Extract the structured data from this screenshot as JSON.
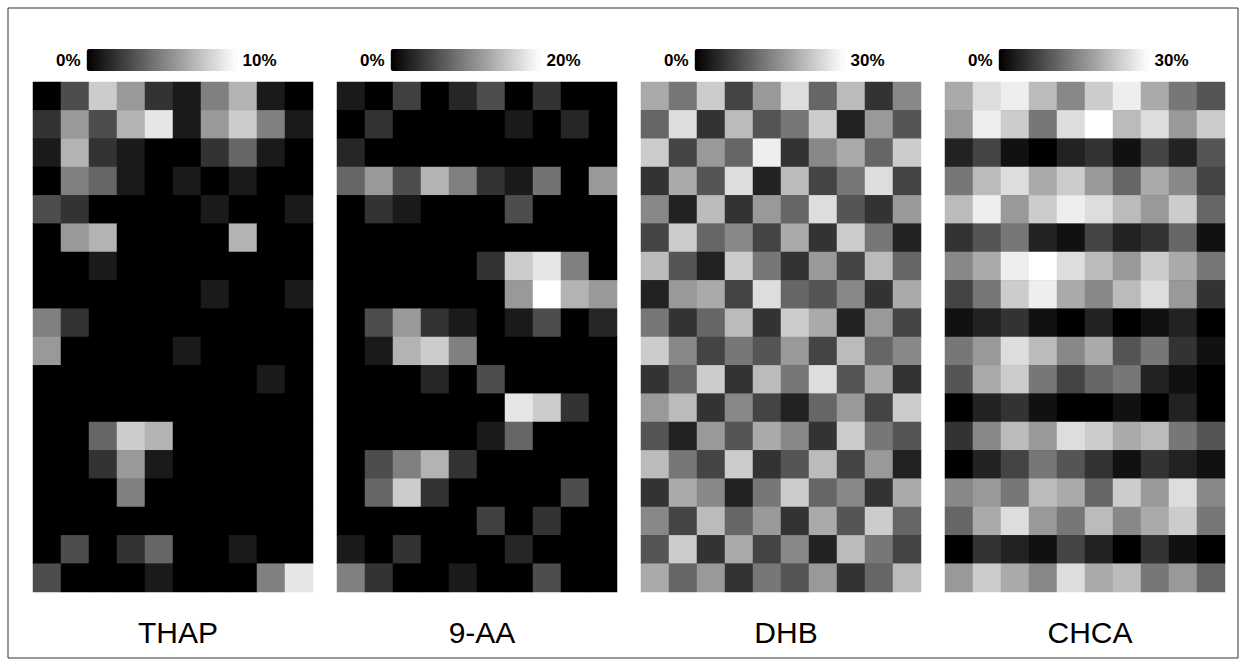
{
  "chart_data": [
    {
      "type": "heatmap",
      "title": "THAP",
      "tick_labels": false,
      "colorbar_range": [
        0,
        10
      ],
      "colorbar_ticks": [
        {
          "value": 0,
          "label": "0%"
        },
        {
          "value": 10,
          "label": "10%"
        }
      ],
      "cells": [
        [
          0,
          3,
          8,
          6,
          2,
          1,
          5,
          7,
          1,
          0
        ],
        [
          2,
          6,
          3,
          7,
          9,
          1,
          6,
          8,
          5,
          1
        ],
        [
          1,
          7,
          2,
          1,
          0,
          0,
          2,
          4,
          1,
          0
        ],
        [
          0,
          5,
          4,
          1,
          0,
          1,
          0,
          1,
          0,
          0
        ],
        [
          3,
          2,
          0,
          0,
          0,
          0,
          1,
          0,
          0,
          1
        ],
        [
          0,
          6,
          7,
          0,
          0,
          0,
          0,
          7,
          0,
          0
        ],
        [
          0,
          0,
          1,
          0,
          0,
          0,
          0,
          0,
          0,
          0
        ],
        [
          0,
          0,
          0,
          0,
          0,
          0,
          1,
          0,
          0,
          1
        ],
        [
          5,
          2,
          0,
          0,
          0,
          0,
          0,
          0,
          0,
          0
        ],
        [
          6,
          0,
          0,
          0,
          0,
          1,
          0,
          0,
          0,
          0
        ],
        [
          0,
          0,
          0,
          0,
          0,
          0,
          0,
          0,
          1,
          0
        ],
        [
          0,
          0,
          0,
          0,
          0,
          0,
          0,
          0,
          0,
          0
        ],
        [
          0,
          0,
          4,
          8,
          7,
          0,
          0,
          0,
          0,
          0
        ],
        [
          0,
          0,
          2,
          6,
          1,
          0,
          0,
          0,
          0,
          0
        ],
        [
          0,
          0,
          0,
          5,
          0,
          0,
          0,
          0,
          0,
          0
        ],
        [
          0,
          0,
          0,
          0,
          0,
          0,
          0,
          0,
          0,
          0
        ],
        [
          0,
          3,
          0,
          2,
          4,
          0,
          0,
          1,
          0,
          0
        ],
        [
          3,
          0,
          0,
          0,
          1,
          0,
          0,
          0,
          5,
          9
        ]
      ]
    },
    {
      "type": "heatmap",
      "title": "9-AA",
      "tick_labels": false,
      "colorbar_range": [
        0,
        20
      ],
      "colorbar_ticks": [
        {
          "value": 0,
          "label": "0%"
        },
        {
          "value": 20,
          "label": "20%"
        }
      ],
      "cells": [
        [
          2,
          0,
          5,
          0,
          3,
          6,
          0,
          4,
          0,
          0
        ],
        [
          0,
          4,
          0,
          0,
          0,
          0,
          2,
          0,
          3,
          0
        ],
        [
          3,
          0,
          0,
          0,
          0,
          0,
          0,
          0,
          0,
          0
        ],
        [
          8,
          12,
          6,
          14,
          10,
          4,
          2,
          9,
          0,
          12
        ],
        [
          0,
          4,
          2,
          0,
          0,
          0,
          6,
          0,
          0,
          0
        ],
        [
          0,
          0,
          0,
          0,
          0,
          0,
          0,
          0,
          0,
          0
        ],
        [
          0,
          0,
          0,
          0,
          0,
          4,
          16,
          18,
          10,
          0
        ],
        [
          0,
          0,
          0,
          0,
          0,
          0,
          12,
          20,
          14,
          12
        ],
        [
          0,
          6,
          12,
          4,
          2,
          0,
          2,
          6,
          0,
          3
        ],
        [
          0,
          2,
          14,
          16,
          10,
          0,
          0,
          0,
          0,
          0
        ],
        [
          0,
          0,
          0,
          3,
          0,
          6,
          0,
          0,
          0,
          0
        ],
        [
          0,
          0,
          0,
          0,
          0,
          0,
          18,
          16,
          4,
          0
        ],
        [
          0,
          0,
          0,
          0,
          0,
          2,
          8,
          0,
          0,
          0
        ],
        [
          0,
          6,
          10,
          14,
          4,
          0,
          0,
          0,
          0,
          0
        ],
        [
          0,
          8,
          16,
          4,
          0,
          0,
          0,
          0,
          6,
          0
        ],
        [
          0,
          0,
          0,
          0,
          0,
          5,
          0,
          4,
          0,
          0
        ],
        [
          2,
          0,
          4,
          0,
          0,
          0,
          3,
          0,
          0,
          0
        ],
        [
          10,
          4,
          0,
          0,
          2,
          0,
          0,
          6,
          0,
          0
        ]
      ]
    },
    {
      "type": "heatmap",
      "title": "DHB",
      "tick_labels": false,
      "colorbar_range": [
        0,
        30
      ],
      "colorbar_ticks": [
        {
          "value": 0,
          "label": "0%"
        },
        {
          "value": 30,
          "label": "30%"
        }
      ],
      "cells": [
        [
          20,
          14,
          24,
          8,
          18,
          26,
          12,
          22,
          6,
          16
        ],
        [
          12,
          26,
          6,
          22,
          10,
          14,
          24,
          4,
          18,
          10
        ],
        [
          24,
          8,
          18,
          12,
          28,
          6,
          16,
          20,
          12,
          24
        ],
        [
          6,
          20,
          10,
          26,
          4,
          22,
          8,
          14,
          26,
          8
        ],
        [
          16,
          4,
          22,
          6,
          18,
          12,
          26,
          10,
          6,
          18
        ],
        [
          8,
          24,
          12,
          16,
          8,
          20,
          6,
          24,
          14,
          4
        ],
        [
          22,
          10,
          4,
          24,
          14,
          6,
          18,
          8,
          22,
          12
        ],
        [
          4,
          18,
          20,
          8,
          26,
          12,
          10,
          16,
          6,
          20
        ],
        [
          14,
          6,
          12,
          22,
          6,
          24,
          20,
          4,
          18,
          8
        ],
        [
          24,
          16,
          8,
          14,
          10,
          18,
          8,
          22,
          12,
          16
        ],
        [
          6,
          12,
          24,
          6,
          22,
          14,
          26,
          10,
          20,
          6
        ],
        [
          18,
          22,
          6,
          16,
          8,
          4,
          12,
          18,
          8,
          24
        ],
        [
          10,
          4,
          18,
          10,
          20,
          16,
          6,
          24,
          14,
          10
        ],
        [
          22,
          14,
          8,
          24,
          6,
          10,
          22,
          8,
          18,
          4
        ],
        [
          6,
          20,
          16,
          4,
          14,
          24,
          12,
          16,
          6,
          20
        ],
        [
          16,
          8,
          22,
          12,
          18,
          6,
          20,
          10,
          24,
          12
        ],
        [
          10,
          24,
          6,
          20,
          8,
          16,
          4,
          22,
          14,
          8
        ],
        [
          20,
          12,
          18,
          6,
          14,
          10,
          18,
          6,
          12,
          22
        ]
      ]
    },
    {
      "type": "heatmap",
      "title": "CHCA",
      "tick_labels": false,
      "colorbar_range": [
        0,
        30
      ],
      "colorbar_ticks": [
        {
          "value": 0,
          "label": "0%"
        },
        {
          "value": 30,
          "label": "30%"
        }
      ],
      "cells": [
        [
          20,
          26,
          28,
          22,
          16,
          24,
          28,
          20,
          14,
          10
        ],
        [
          18,
          28,
          24,
          14,
          26,
          30,
          22,
          26,
          18,
          24
        ],
        [
          4,
          8,
          2,
          0,
          4,
          6,
          2,
          8,
          4,
          10
        ],
        [
          14,
          22,
          26,
          20,
          24,
          18,
          12,
          20,
          16,
          8
        ],
        [
          22,
          28,
          18,
          24,
          28,
          26,
          22,
          18,
          24,
          12
        ],
        [
          6,
          10,
          14,
          4,
          2,
          8,
          4,
          6,
          12,
          2
        ],
        [
          16,
          20,
          28,
          30,
          26,
          22,
          18,
          24,
          20,
          14
        ],
        [
          8,
          14,
          24,
          28,
          20,
          16,
          22,
          26,
          18,
          6
        ],
        [
          2,
          4,
          6,
          2,
          0,
          4,
          0,
          2,
          4,
          0
        ],
        [
          14,
          18,
          26,
          22,
          16,
          20,
          10,
          14,
          6,
          2
        ],
        [
          10,
          20,
          24,
          14,
          8,
          12,
          14,
          4,
          2,
          0
        ],
        [
          0,
          4,
          6,
          2,
          0,
          0,
          2,
          0,
          4,
          0
        ],
        [
          6,
          16,
          22,
          18,
          26,
          24,
          20,
          22,
          14,
          10
        ],
        [
          0,
          4,
          8,
          14,
          10,
          6,
          2,
          6,
          4,
          2
        ],
        [
          16,
          18,
          14,
          22,
          20,
          12,
          24,
          18,
          26,
          16
        ],
        [
          12,
          20,
          26,
          18,
          14,
          22,
          16,
          20,
          24,
          14
        ],
        [
          0,
          6,
          4,
          2,
          8,
          4,
          0,
          6,
          2,
          0
        ],
        [
          18,
          24,
          20,
          16,
          26,
          20,
          22,
          14,
          18,
          12
        ]
      ]
    }
  ]
}
